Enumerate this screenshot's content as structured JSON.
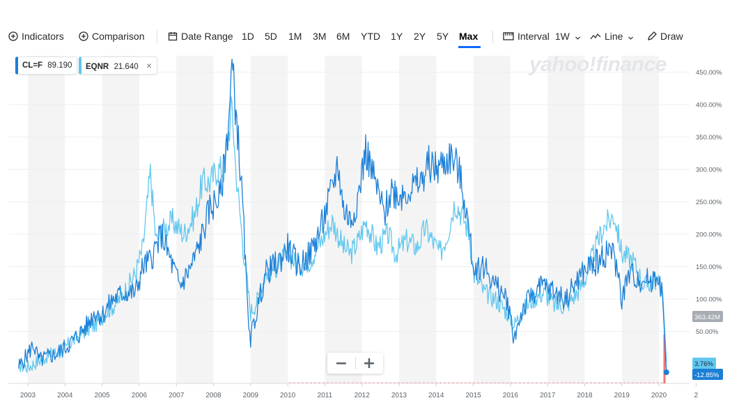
{
  "toolbar": {
    "indicators": "Indicators",
    "comparison": "Comparison",
    "date_range": "Date Range",
    "ranges": [
      "1D",
      "5D",
      "1M",
      "3M",
      "6M",
      "YTD",
      "1Y",
      "2Y",
      "5Y",
      "Max"
    ],
    "active_range": "Max",
    "interval": "Interval",
    "interval_value": "1W",
    "chart_style": "Line",
    "draw": "Draw",
    "icons": {
      "indicators": "plus-circle-icon",
      "comparison": "plus-circle-icon",
      "date_range": "calendar-icon",
      "interval": "interval-icon",
      "line": "line-chart-icon",
      "draw": "pencil-icon",
      "chevron": "chevron-down-icon"
    }
  },
  "chips": [
    {
      "symbol": "CL=F",
      "value": "89.190",
      "color": "#1b7fd6"
    },
    {
      "symbol": "EQNR",
      "value": "21.640",
      "color": "#61c7ee",
      "close": "×"
    }
  ],
  "watermark": "yahoo!finance",
  "labels": {
    "volume": "363.42M",
    "eqnr_last": "3.76%",
    "cl_last": "-12.85%"
  },
  "zoom": {
    "minus": "−",
    "plus": "+"
  },
  "colors": {
    "cl": "#1b7fd6",
    "eqnr": "#61c7ee",
    "band": "#f4f4f4",
    "accent": "#0f69ff",
    "drop": "#ef4a4a"
  },
  "chart_data": {
    "type": "line",
    "title": "",
    "xlabel": "",
    "ylabel": "",
    "x_ticks": [
      "2003",
      "2004",
      "2005",
      "2006",
      "2007",
      "2008",
      "2009",
      "2010",
      "2011",
      "2012",
      "2013",
      "2014",
      "2015",
      "2016",
      "2017",
      "2018",
      "2019",
      "2020",
      "2"
    ],
    "y_ticks": [
      "450.00%",
      "400.00%",
      "350.00%",
      "300.00%",
      "250.00%",
      "200.00%",
      "150.00%",
      "100.00%",
      "50.00%"
    ],
    "y_unit": "%",
    "ylim": [
      -15,
      470
    ],
    "grid": "horizontal",
    "year_bands": "alternating",
    "series": [
      {
        "name": "CL=F",
        "color": "#1b7fd6",
        "points": [
          [
            2002.75,
            -5
          ],
          [
            2003.0,
            15
          ],
          [
            2003.15,
            30
          ],
          [
            2003.3,
            5
          ],
          [
            2003.5,
            10
          ],
          [
            2003.75,
            15
          ],
          [
            2004.0,
            25
          ],
          [
            2004.3,
            40
          ],
          [
            2004.6,
            60
          ],
          [
            2004.8,
            80
          ],
          [
            2005.0,
            75
          ],
          [
            2005.3,
            100
          ],
          [
            2005.6,
            110
          ],
          [
            2005.9,
            110
          ],
          [
            2006.1,
            150
          ],
          [
            2006.3,
            160
          ],
          [
            2006.6,
            200
          ],
          [
            2006.9,
            150
          ],
          [
            2007.1,
            120
          ],
          [
            2007.4,
            150
          ],
          [
            2007.6,
            180
          ],
          [
            2007.9,
            240
          ],
          [
            2008.2,
            260
          ],
          [
            2008.4,
            370
          ],
          [
            2008.5,
            460
          ],
          [
            2008.65,
            360
          ],
          [
            2008.8,
            230
          ],
          [
            2008.9,
            100
          ],
          [
            2009.0,
            40
          ],
          [
            2009.2,
            90
          ],
          [
            2009.4,
            140
          ],
          [
            2009.6,
            150
          ],
          [
            2009.8,
            160
          ],
          [
            2010.0,
            180
          ],
          [
            2010.3,
            150
          ],
          [
            2010.6,
            170
          ],
          [
            2010.9,
            210
          ],
          [
            2011.2,
            270
          ],
          [
            2011.35,
            310
          ],
          [
            2011.5,
            240
          ],
          [
            2011.7,
            220
          ],
          [
            2011.9,
            260
          ],
          [
            2012.1,
            330
          ],
          [
            2012.4,
            270
          ],
          [
            2012.6,
            230
          ],
          [
            2012.8,
            270
          ],
          [
            2013.0,
            260
          ],
          [
            2013.3,
            270
          ],
          [
            2013.6,
            280
          ],
          [
            2013.8,
            310
          ],
          [
            2014.0,
            300
          ],
          [
            2014.2,
            310
          ],
          [
            2014.4,
            320
          ],
          [
            2014.6,
            300
          ],
          [
            2014.8,
            240
          ],
          [
            2015.0,
            150
          ],
          [
            2015.3,
            150
          ],
          [
            2015.6,
            120
          ],
          [
            2015.9,
            100
          ],
          [
            2016.0,
            70
          ],
          [
            2016.1,
            40
          ],
          [
            2016.3,
            80
          ],
          [
            2016.6,
            110
          ],
          [
            2016.9,
            120
          ],
          [
            2017.2,
            110
          ],
          [
            2017.5,
            100
          ],
          [
            2017.8,
            130
          ],
          [
            2018.1,
            150
          ],
          [
            2018.4,
            160
          ],
          [
            2018.7,
            180
          ],
          [
            2018.9,
            140
          ],
          [
            2019.0,
            100
          ],
          [
            2019.2,
            140
          ],
          [
            2019.5,
            130
          ],
          [
            2019.8,
            130
          ],
          [
            2020.0,
            140
          ],
          [
            2020.1,
            100
          ],
          [
            2020.2,
            -12.85
          ]
        ]
      },
      {
        "name": "EQNR",
        "color": "#61c7ee",
        "points": [
          [
            2002.75,
            -2
          ],
          [
            2003.0,
            -5
          ],
          [
            2003.3,
            5
          ],
          [
            2003.6,
            15
          ],
          [
            2003.9,
            20
          ],
          [
            2004.2,
            35
          ],
          [
            2004.5,
            50
          ],
          [
            2004.8,
            60
          ],
          [
            2005.1,
            80
          ],
          [
            2005.4,
            95
          ],
          [
            2005.7,
            120
          ],
          [
            2005.9,
            140
          ],
          [
            2006.1,
            180
          ],
          [
            2006.3,
            295
          ],
          [
            2006.45,
            190
          ],
          [
            2006.7,
            210
          ],
          [
            2006.9,
            220
          ],
          [
            2007.2,
            200
          ],
          [
            2007.5,
            230
          ],
          [
            2007.7,
            280
          ],
          [
            2007.9,
            280
          ],
          [
            2008.1,
            300
          ],
          [
            2008.3,
            300
          ],
          [
            2008.5,
            400
          ],
          [
            2008.6,
            300
          ],
          [
            2008.8,
            180
          ],
          [
            2009.0,
            80
          ],
          [
            2009.2,
            100
          ],
          [
            2009.4,
            140
          ],
          [
            2009.7,
            150
          ],
          [
            2010.0,
            170
          ],
          [
            2010.3,
            150
          ],
          [
            2010.6,
            160
          ],
          [
            2010.9,
            190
          ],
          [
            2011.2,
            220
          ],
          [
            2011.5,
            180
          ],
          [
            2011.7,
            170
          ],
          [
            2011.9,
            190
          ],
          [
            2012.1,
            220
          ],
          [
            2012.4,
            180
          ],
          [
            2012.7,
            200
          ],
          [
            2012.9,
            170
          ],
          [
            2013.2,
            190
          ],
          [
            2013.5,
            180
          ],
          [
            2013.7,
            210
          ],
          [
            2013.9,
            190
          ],
          [
            2014.1,
            170
          ],
          [
            2014.3,
            200
          ],
          [
            2014.5,
            250
          ],
          [
            2014.7,
            230
          ],
          [
            2014.9,
            200
          ],
          [
            2015.0,
            140
          ],
          [
            2015.3,
            110
          ],
          [
            2015.6,
            100
          ],
          [
            2015.9,
            80
          ],
          [
            2016.1,
            60
          ],
          [
            2016.3,
            80
          ],
          [
            2016.6,
            100
          ],
          [
            2016.9,
            110
          ],
          [
            2017.2,
            90
          ],
          [
            2017.5,
            90
          ],
          [
            2017.8,
            110
          ],
          [
            2018.0,
            130
          ],
          [
            2018.3,
            180
          ],
          [
            2018.5,
            210
          ],
          [
            2018.8,
            230
          ],
          [
            2019.0,
            170
          ],
          [
            2019.3,
            160
          ],
          [
            2019.6,
            120
          ],
          [
            2019.9,
            130
          ],
          [
            2020.1,
            110
          ],
          [
            2020.2,
            3.76
          ]
        ]
      }
    ]
  }
}
